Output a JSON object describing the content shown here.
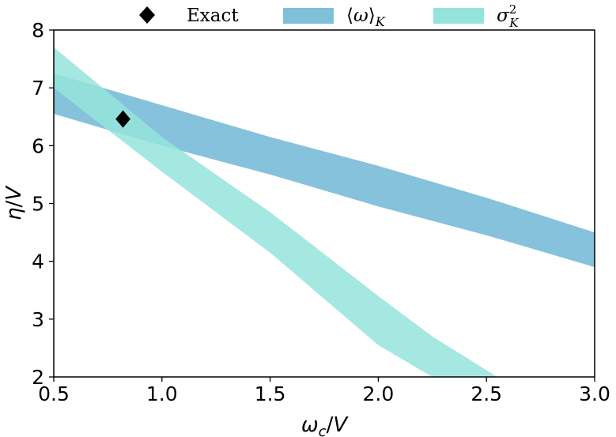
{
  "chart_data": {
    "type": "area",
    "title": "",
    "xlabel": "ωc/V",
    "ylabel": "η/V",
    "xlim": [
      0.5,
      3.0
    ],
    "ylim": [
      2,
      8
    ],
    "xticks": [
      "0.5",
      "1.0",
      "1.5",
      "2.0",
      "2.5",
      "3.0"
    ],
    "yticks": [
      "2",
      "3",
      "4",
      "5",
      "6",
      "7",
      "8"
    ],
    "grid": false,
    "legend_position": "top",
    "series": [
      {
        "name": "⟨ω⟩K",
        "kind": "band",
        "color": "#7fbfd9",
        "x": [
          0.5,
          1.0,
          1.5,
          2.0,
          2.5,
          3.0
        ],
        "upper": [
          7.25,
          6.7,
          6.15,
          5.65,
          5.1,
          4.5
        ],
        "lower": [
          6.55,
          6.0,
          5.5,
          4.95,
          4.45,
          3.9
        ]
      },
      {
        "name": "σ²K",
        "kind": "band",
        "color": "#94e4dc",
        "x": [
          0.5,
          1.0,
          1.5,
          2.0,
          2.25,
          2.55
        ],
        "upper": [
          7.7,
          6.15,
          4.85,
          3.4,
          2.7,
          2.0
        ],
        "lower": [
          7.0,
          5.55,
          4.15,
          2.55,
          2.0,
          2.0
        ]
      },
      {
        "name": "Exact",
        "kind": "marker",
        "color": "#000000",
        "x": [
          0.82
        ],
        "y": [
          6.46
        ]
      }
    ]
  }
}
